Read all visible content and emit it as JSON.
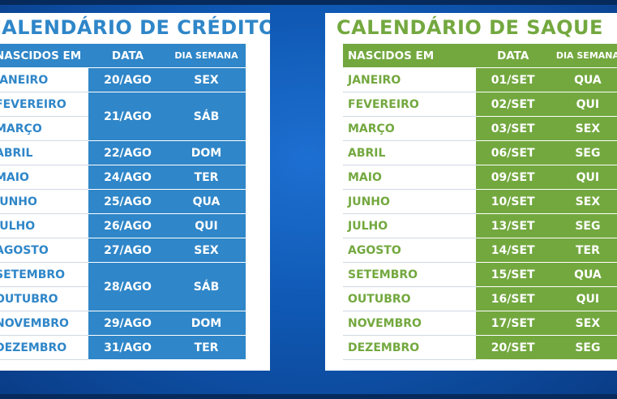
{
  "credito": {
    "title": "CALENDÁRIO DE CRÉDITO",
    "headers": {
      "nascidos": "NASCIDOS EM",
      "data": "DATA",
      "dia": "DIA SEMANA"
    },
    "rows": [
      {
        "mes": "JANEIRO",
        "data": "20/AGO",
        "dia": "SEX"
      },
      {
        "mes": "FEVEREIRO",
        "data": "21/AGO",
        "dia": "SÁB"
      },
      {
        "mes": "MARÇO"
      },
      {
        "mes": "ABRIL",
        "data": "22/AGO",
        "dia": "DOM"
      },
      {
        "mes": "MAIO",
        "data": "24/AGO",
        "dia": "TER"
      },
      {
        "mes": "JUNHO",
        "data": "25/AGO",
        "dia": "QUA"
      },
      {
        "mes": "JULHO",
        "data": "26/AGO",
        "dia": "QUI"
      },
      {
        "mes": "AGOSTO",
        "data": "27/AGO",
        "dia": "SEX"
      },
      {
        "mes": "SETEMBRO",
        "data": "28/AGO",
        "dia": "SÁB"
      },
      {
        "mes": "OUTUBRO"
      },
      {
        "mes": "NOVEMBRO",
        "data": "29/AGO",
        "dia": "DOM"
      },
      {
        "mes": "DEZEMBRO",
        "data": "31/AGO",
        "dia": "TER"
      }
    ],
    "color": "#2f86c8"
  },
  "saque": {
    "title": "CALENDÁRIO DE SAQUE",
    "headers": {
      "nascidos": "NASCIDOS EM",
      "data": "DATA",
      "dia": "DIA SEMANA"
    },
    "rows": [
      {
        "mes": "JANEIRO",
        "data": "01/SET",
        "dia": "QUA"
      },
      {
        "mes": "FEVEREIRO",
        "data": "02/SET",
        "dia": "QUI"
      },
      {
        "mes": "MARÇO",
        "data": "03/SET",
        "dia": "SEX"
      },
      {
        "mes": "ABRIL",
        "data": "06/SET",
        "dia": "SEG"
      },
      {
        "mes": "MAIO",
        "data": "09/SET",
        "dia": "QUI"
      },
      {
        "mes": "JUNHO",
        "data": "10/SET",
        "dia": "SEX"
      },
      {
        "mes": "JULHO",
        "data": "13/SET",
        "dia": "SEG"
      },
      {
        "mes": "AGOSTO",
        "data": "14/SET",
        "dia": "TER"
      },
      {
        "mes": "SETEMBRO",
        "data": "15/SET",
        "dia": "QUA"
      },
      {
        "mes": "OUTUBRO",
        "data": "16/SET",
        "dia": "QUI"
      },
      {
        "mes": "NOVEMBRO",
        "data": "17/SET",
        "dia": "SEX"
      },
      {
        "mes": "DEZEMBRO",
        "data": "20/SET",
        "dia": "SEG"
      }
    ],
    "color": "#73a83f"
  }
}
